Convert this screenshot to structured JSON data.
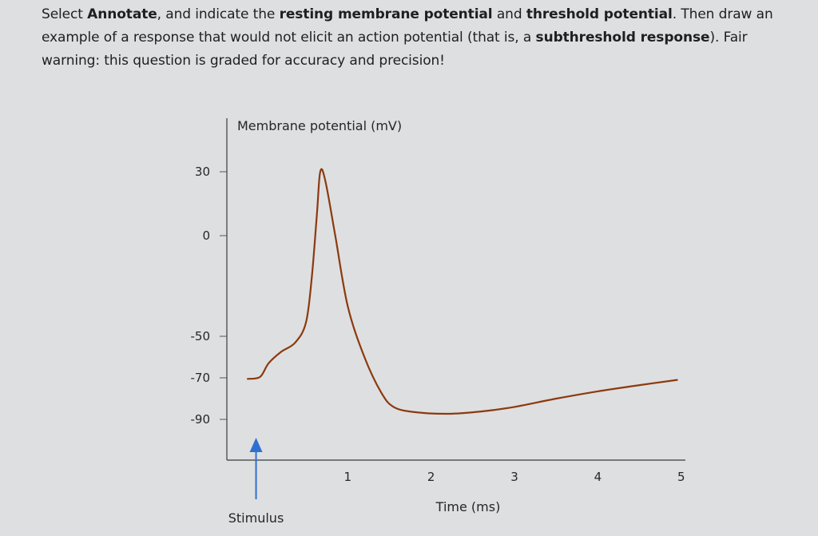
{
  "question": {
    "lines": [
      [
        {
          "text": "Select ",
          "bold": false
        },
        {
          "text": "Annotate",
          "bold": true
        },
        {
          "text": ", and indicate the ",
          "bold": false
        },
        {
          "text": "resting membrane potential",
          "bold": true
        },
        {
          "text": " and ",
          "bold": false
        },
        {
          "text": "threshold potential",
          "bold": true
        },
        {
          "text": ". Then draw an",
          "bold": false
        }
      ],
      [
        {
          "text": "example of a response that would not elicit an action potential (that is, a ",
          "bold": false
        },
        {
          "text": "subthreshold response",
          "bold": true
        },
        {
          "text": "). Fair",
          "bold": false
        }
      ],
      [
        {
          "text": "warning: this question is graded for accuracy and precision!",
          "bold": false
        }
      ]
    ]
  },
  "chart_data": {
    "type": "line",
    "title": "",
    "ylabel": "Membrane potential (mV)",
    "xlabel": "Time (ms)",
    "y_ticks": [
      30,
      0,
      -50,
      -70,
      -90
    ],
    "x_ticks": [
      1,
      2,
      3,
      4,
      5
    ],
    "xlim": [
      -0.45,
      5.05
    ],
    "stimulus": {
      "label": "Stimulus",
      "x": -0.1
    },
    "line_color": "#8b3a0e",
    "stimulus_color": "#2f6fd0",
    "series": [
      {
        "points": [
          [
            -0.2,
            -70.5
          ],
          [
            -0.05,
            -69.5
          ],
          [
            0.05,
            -63
          ],
          [
            0.2,
            -57.5
          ],
          [
            0.37,
            -53
          ],
          [
            0.5,
            -43
          ],
          [
            0.57,
            -20
          ],
          [
            0.63,
            10
          ],
          [
            0.67,
            30
          ],
          [
            0.73,
            26
          ],
          [
            0.85,
            0
          ],
          [
            1.0,
            -35
          ],
          [
            1.2,
            -60
          ],
          [
            1.4,
            -77
          ],
          [
            1.55,
            -84
          ],
          [
            1.8,
            -86.5
          ],
          [
            2.2,
            -87.3
          ],
          [
            2.6,
            -86.2
          ],
          [
            3.0,
            -84
          ],
          [
            3.5,
            -80
          ],
          [
            4.0,
            -76.5
          ],
          [
            4.5,
            -73.5
          ],
          [
            4.95,
            -71
          ]
        ]
      }
    ]
  }
}
